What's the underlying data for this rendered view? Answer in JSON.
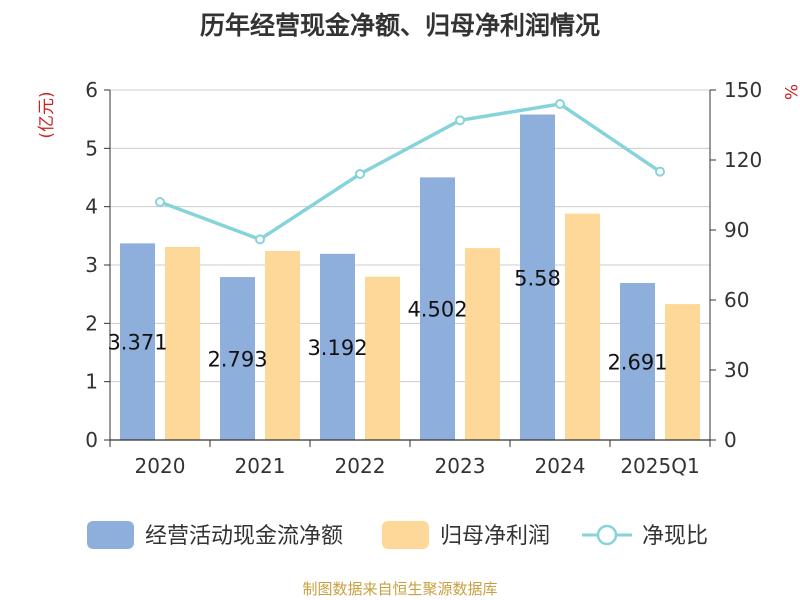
{
  "chart_data": {
    "type": "bar",
    "title": "历年经营现金净额、归母净利润情况",
    "categories": [
      "2020",
      "2021",
      "2022",
      "2023",
      "2024",
      "2025Q1"
    ],
    "series": [
      {
        "name": "经营活动现金流净额",
        "type": "bar",
        "axis": "left",
        "color": "#8eaedc",
        "values": [
          3.371,
          2.793,
          3.192,
          4.502,
          5.58,
          2.691
        ]
      },
      {
        "name": "归母净利润",
        "type": "bar",
        "axis": "left",
        "color": "#fdd899",
        "values": [
          3.31,
          3.24,
          2.8,
          3.29,
          3.88,
          2.33
        ]
      },
      {
        "name": "净现比",
        "type": "line",
        "axis": "right",
        "color": "#86d4da",
        "values": [
          102,
          86,
          114,
          137,
          144,
          115
        ]
      }
    ],
    "data_labels": [
      "3.371",
      "2.793",
      "3.192",
      "4.502",
      "5.58",
      "2.691"
    ],
    "left_axis": {
      "label": "(亿元)",
      "range": [
        0,
        6
      ],
      "ticks": [
        "0",
        "1",
        "2",
        "3",
        "4",
        "5",
        "6"
      ]
    },
    "right_axis": {
      "label": "%",
      "range": [
        0,
        150
      ],
      "ticks": [
        "0",
        "30",
        "60",
        "90",
        "120",
        "150"
      ]
    },
    "grid": true,
    "legend": "bottom",
    "source": "制图数据来自恒生聚源数据库",
    "colors": {
      "axis_label": "#cc2222",
      "source": "#c8a040"
    }
  }
}
